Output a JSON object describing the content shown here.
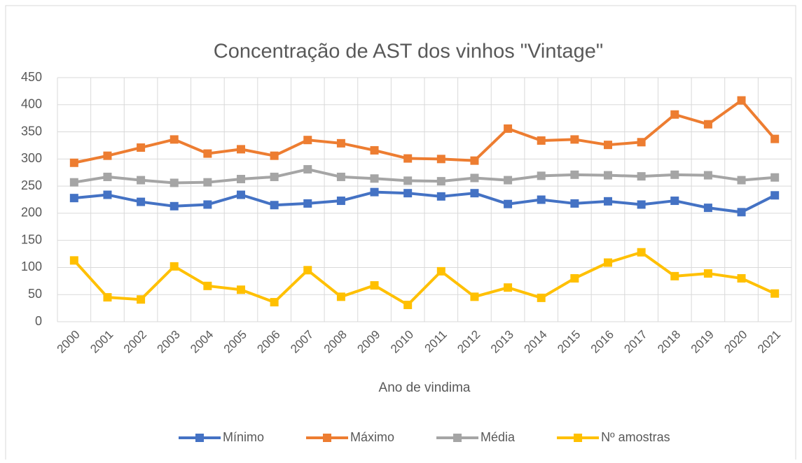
{
  "chart_data": {
    "type": "line",
    "title": "Concentração de AST dos vinhos  \"Vintage\"",
    "x_label": "Ano de vindima",
    "categories": [
      "2000",
      "2001",
      "2002",
      "2003",
      "2004",
      "2005",
      "2006",
      "2007",
      "2008",
      "2009",
      "2010",
      "2011",
      "2012",
      "2013",
      "2014",
      "2015",
      "2016",
      "2017",
      "2018",
      "2019",
      "2020",
      "2021"
    ],
    "series": [
      {
        "name": "Mínimo",
        "color": "#4472c4",
        "values": [
          228,
          234,
          221,
          213,
          216,
          234,
          215,
          218,
          223,
          239,
          237,
          231,
          237,
          217,
          225,
          218,
          222,
          216,
          223,
          210,
          202,
          233
        ]
      },
      {
        "name": "Máximo",
        "color": "#ed7d31",
        "values": [
          293,
          306,
          321,
          336,
          310,
          318,
          306,
          335,
          329,
          316,
          301,
          300,
          297,
          356,
          334,
          336,
          326,
          331,
          382,
          364,
          408,
          337
        ]
      },
      {
        "name": "Média",
        "color": "#a5a5a5",
        "values": [
          257,
          267,
          261,
          256,
          257,
          263,
          267,
          281,
          267,
          264,
          260,
          259,
          265,
          261,
          269,
          271,
          270,
          268,
          271,
          270,
          261,
          266
        ]
      },
      {
        "name": "Nº amostras",
        "color": "#ffc000",
        "values": [
          113,
          45,
          41,
          102,
          66,
          59,
          36,
          95,
          46,
          67,
          31,
          93,
          46,
          63,
          44,
          80,
          109,
          128,
          84,
          89,
          80,
          52
        ]
      }
    ],
    "ylim": [
      0,
      450
    ],
    "yticks": [
      0,
      50,
      100,
      150,
      200,
      250,
      300,
      350,
      400,
      450
    ],
    "grid": true,
    "legend": "bottom"
  }
}
